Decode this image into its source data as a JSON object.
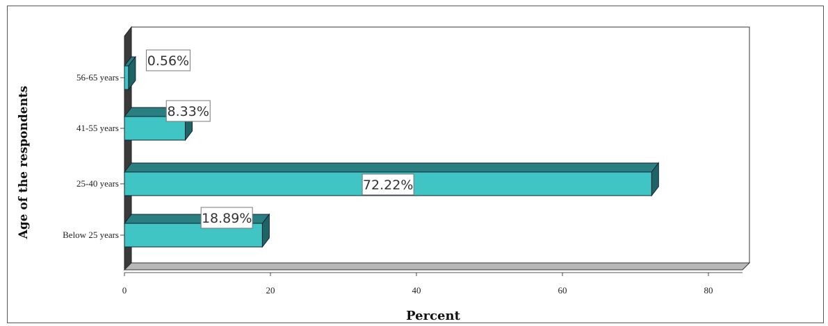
{
  "chart_data": {
    "type": "bar",
    "orientation": "horizontal",
    "style": "3d",
    "categories": [
      "Below 25 years",
      "25-40 years",
      "41-55 years",
      "56-65 years"
    ],
    "values": [
      18.89,
      72.22,
      8.33,
      0.56
    ],
    "data_labels": [
      "18.89%",
      "72.22%",
      "8.33%",
      "0.56%"
    ],
    "xlabel": "Percent",
    "ylabel": "Age of the respondents",
    "xlim": [
      0,
      80
    ],
    "xticks": [
      "0",
      "20",
      "40",
      "60",
      "80"
    ],
    "grid": false,
    "legend": "none",
    "colors": {
      "bar_front": "#40c4c4",
      "bar_top": "#2a7f80",
      "bar_side": "#1f6465",
      "floor": "#b8b8b8"
    }
  }
}
